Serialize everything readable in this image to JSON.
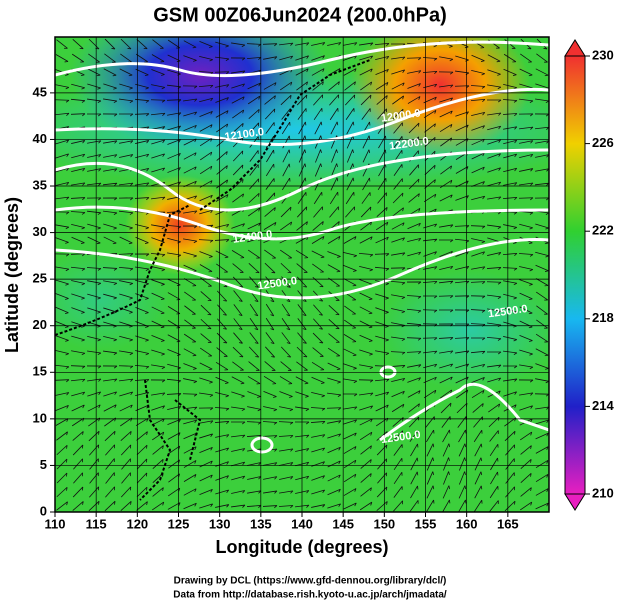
{
  "chart_data": {
    "type": "map",
    "title": "GSM 00Z06Jun2024 (200.0hPa)",
    "xlabel": "Longitude (degrees)",
    "ylabel": "Latitude  (degrees)",
    "xlim": [
      110,
      170
    ],
    "ylim": [
      0,
      51
    ],
    "xticks": [
      110,
      115,
      120,
      125,
      130,
      135,
      140,
      145,
      150,
      155,
      160,
      165
    ],
    "yticks": [
      0,
      5,
      10,
      15,
      20,
      25,
      30,
      35,
      40,
      45
    ],
    "colorbar": {
      "lim": [
        210,
        230
      ],
      "ticks": [
        210,
        214,
        218,
        222,
        226,
        230
      ]
    },
    "annotations": [
      {
        "text": "12100.0",
        "x": 133,
        "y": 40.5
      },
      {
        "text": "12400.0",
        "x": 134,
        "y": 29.5
      },
      {
        "text": "12500.0",
        "x": 137,
        "y": 24.5
      },
      {
        "text": "12000.0",
        "x": 152,
        "y": 42.5
      },
      {
        "text": "12200.0",
        "x": 153,
        "y": 39.5
      },
      {
        "text": "12500.0",
        "x": 165,
        "y": 21.5
      },
      {
        "text": "12500.0",
        "x": 152,
        "y": 8
      }
    ],
    "credits": [
      "Drawing by DCL (https://www.gfd-dennou.org/library/dcl/)",
      "Data from http://database.rish.kyoto-u.ac.jp/arch/jmadata/"
    ]
  }
}
